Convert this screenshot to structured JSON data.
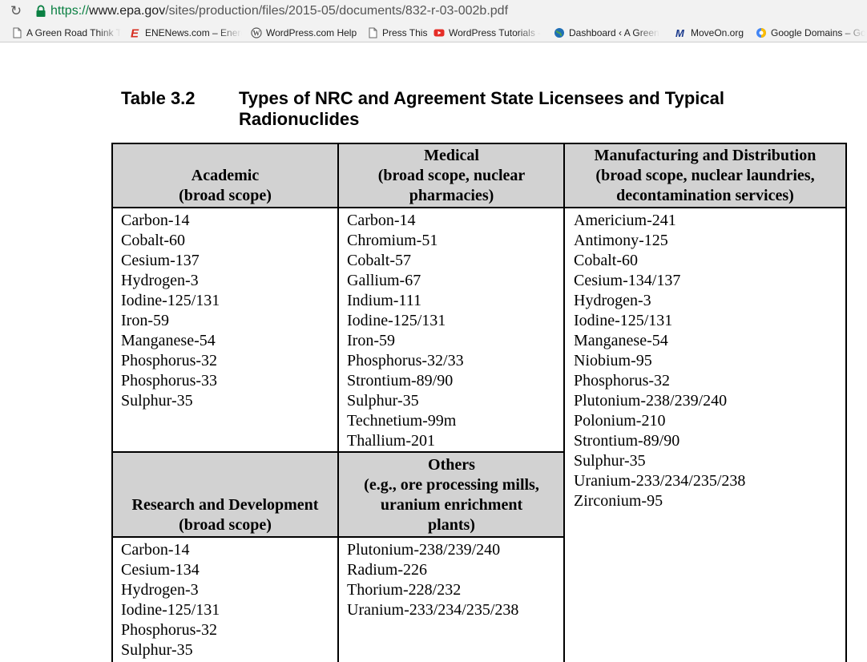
{
  "browser": {
    "url_scheme": "https://",
    "url_host": "www.epa.gov",
    "url_path": "/sites/production/files/2015-05/documents/832-r-03-002b.pdf",
    "reload_glyph": "↻",
    "bookmarks": [
      {
        "label": "A Green Road Think T",
        "icon": "page-icon"
      },
      {
        "label": "ENENews.com – Energ",
        "icon": "enenews-icon"
      },
      {
        "label": "WordPress.com Help",
        "icon": "wordpress-icon"
      },
      {
        "label": "Press This",
        "icon": "page-icon"
      },
      {
        "label": "WordPress Tutorials -",
        "icon": "youtube-icon"
      },
      {
        "label": "Dashboard ‹ A Green",
        "icon": "globe-icon"
      },
      {
        "label": "MoveOn.org",
        "icon": "moveon-icon"
      },
      {
        "label": "Google Domains – Go",
        "icon": "google-domains-icon"
      }
    ]
  },
  "document": {
    "table_number": "Table 3.2",
    "table_title": "Types of NRC and Agreement State Licensees and Typical Radionuclides",
    "academic": {
      "header": [
        "Academic",
        "(broad scope)"
      ],
      "items": [
        "Carbon-14",
        "Cobalt-60",
        "Cesium-137",
        "Hydrogen-3",
        "Iodine-125/131",
        "Iron-59",
        "Manganese-54",
        "Phosphorus-32",
        "Phosphorus-33",
        "Sulphur-35"
      ]
    },
    "medical": {
      "header": [
        "Medical",
        "(broad scope, nuclear",
        "pharmacies)"
      ],
      "items": [
        "Carbon-14",
        "Chromium-51",
        "Cobalt-57",
        "Gallium-67",
        "Indium-111",
        "Iodine-125/131",
        "Iron-59",
        "Phosphorus-32/33",
        "Strontium-89/90",
        "Sulphur-35",
        "Technetium-99m",
        "Thallium-201"
      ]
    },
    "manufacturing": {
      "header": [
        "Manufacturing and Distribution",
        "(broad scope, nuclear laundries,",
        "decontamination services)"
      ],
      "items": [
        "Americium-241",
        "Antimony-125",
        "Cobalt-60",
        "Cesium-134/137",
        "Hydrogen-3",
        "Iodine-125/131",
        "Manganese-54",
        "Niobium-95",
        "Phosphorus-32",
        "Plutonium-238/239/240",
        "Polonium-210",
        "Strontium-89/90",
        "Sulphur-35",
        "Uranium-233/234/235/238",
        "Zirconium-95"
      ]
    },
    "research": {
      "header": [
        "Research and Development",
        "(broad scope)"
      ],
      "items": [
        "Carbon-14",
        "Cesium-134",
        "Hydrogen-3",
        "Iodine-125/131",
        "Phosphorus-32",
        "Sulphur-35"
      ]
    },
    "others": {
      "header": [
        "Others",
        "(e.g., ore processing mills,",
        "uranium enrichment",
        "plants)"
      ],
      "items": [
        "Plutonium-238/239/240",
        "Radium-226",
        "Thorium-228/232",
        "Uranium-233/234/235/238"
      ]
    }
  }
}
